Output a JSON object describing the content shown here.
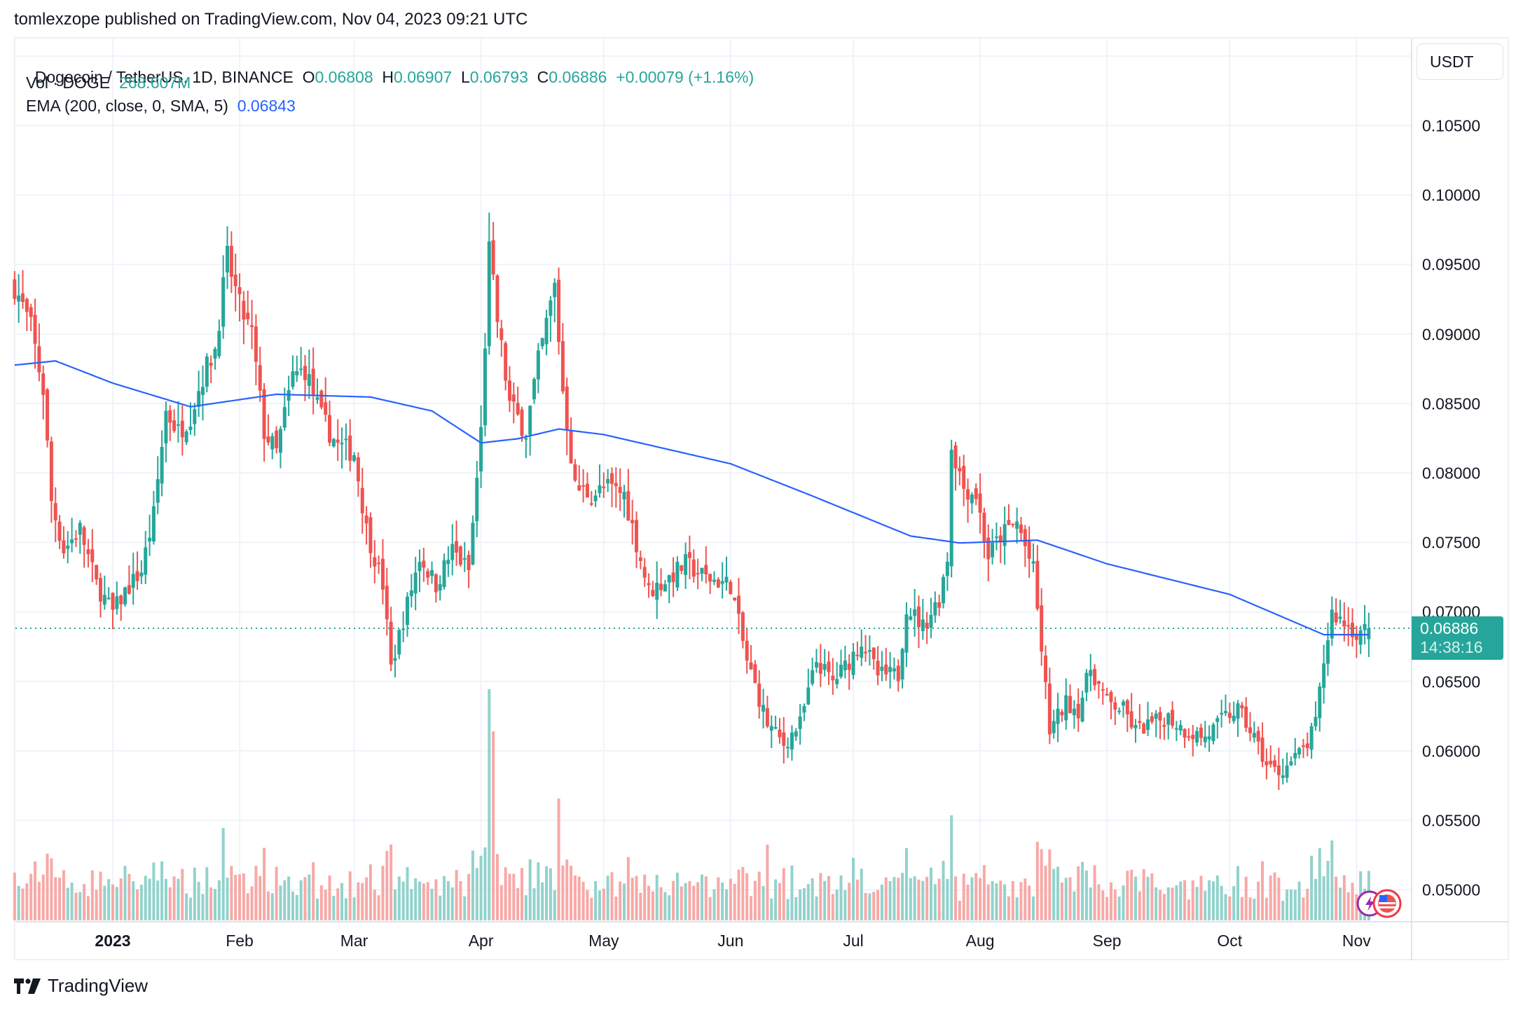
{
  "header": {
    "publisher_line": "tomlexzope published on TradingView.com, Nov 04, 2023 09:21 UTC"
  },
  "legend": {
    "symbol": "Dogecoin / TetherUS, 1D, BINANCE",
    "open_label": "O",
    "open": "0.06808",
    "high_label": "H",
    "high": "0.06907",
    "low_label": "L",
    "low": "0.06793",
    "close_label": "C",
    "close": "0.06886",
    "change": "+0.00079 (+1.16%)",
    "volume_label": "Vol · DOGE",
    "volume": "268.607M",
    "ema_label": "EMA (200, close, 0, SMA, 5)",
    "ema_value": "0.06843"
  },
  "price_axis": {
    "currency": "USDT",
    "ticks": [
      "0.10500",
      "0.10000",
      "0.09500",
      "0.09000",
      "0.08500",
      "0.08000",
      "0.07500",
      "0.07000",
      "0.06500",
      "0.06000",
      "0.05500",
      "0.05000"
    ],
    "last_price": "0.06886",
    "countdown": "14:38:16"
  },
  "time_axis": {
    "labels": [
      "2023",
      "Feb",
      "Mar",
      "Apr",
      "May",
      "Jun",
      "Jul",
      "Aug",
      "Sep",
      "Oct",
      "Nov"
    ]
  },
  "footer": {
    "brand": "TradingView"
  },
  "colors": {
    "up": "#26a69a",
    "down": "#ef5350",
    "vol_up": "#92d2cc",
    "vol_down": "#f7a9a7",
    "ema": "#2962ff",
    "grid": "#f0f3fa"
  },
  "chart_data": {
    "type": "candlestick",
    "title": "Dogecoin / TetherUS, 1D, BINANCE",
    "xlabel": "",
    "ylabel": "USDT",
    "ylim": [
      0.0475,
      0.1105
    ],
    "x_range": [
      "2022-12-08",
      "2023-11-04"
    ],
    "grid": true,
    "legend_position": "top-left",
    "series": [
      {
        "name": "DOGE/USDT close (approx. path)",
        "points": [
          [
            "2022-12-08",
            0.0935
          ],
          [
            "2022-12-12",
            0.0905
          ],
          [
            "2022-12-15",
            0.086
          ],
          [
            "2022-12-17",
            0.078
          ],
          [
            "2022-12-20",
            0.0745
          ],
          [
            "2022-12-24",
            0.076
          ],
          [
            "2022-12-28",
            0.072
          ],
          [
            "2023-01-01",
            0.07
          ],
          [
            "2023-01-04",
            0.0715
          ],
          [
            "2023-01-08",
            0.073
          ],
          [
            "2023-01-11",
            0.077
          ],
          [
            "2023-01-14",
            0.0845
          ],
          [
            "2023-01-17",
            0.083
          ],
          [
            "2023-01-20",
            0.0842
          ],
          [
            "2023-01-23",
            0.087
          ],
          [
            "2023-01-26",
            0.089
          ],
          [
            "2023-01-29",
            0.0955
          ],
          [
            "2023-02-01",
            0.092
          ],
          [
            "2023-02-04",
            0.09
          ],
          [
            "2023-02-07",
            0.083
          ],
          [
            "2023-02-10",
            0.0815
          ],
          [
            "2023-02-14",
            0.087
          ],
          [
            "2023-02-17",
            0.0875
          ],
          [
            "2023-02-21",
            0.084
          ],
          [
            "2023-02-25",
            0.082
          ],
          [
            "2023-03-01",
            0.0815
          ],
          [
            "2023-03-04",
            0.076
          ],
          [
            "2023-03-08",
            0.072
          ],
          [
            "2023-03-10",
            0.066
          ],
          [
            "2023-03-13",
            0.0695
          ],
          [
            "2023-03-17",
            0.074
          ],
          [
            "2023-03-21",
            0.072
          ],
          [
            "2023-03-25",
            0.0745
          ],
          [
            "2023-03-29",
            0.073
          ],
          [
            "2023-04-01",
            0.083
          ],
          [
            "2023-04-03",
            0.096
          ],
          [
            "2023-04-05",
            0.091
          ],
          [
            "2023-04-08",
            0.085
          ],
          [
            "2023-04-12",
            0.083
          ],
          [
            "2023-04-15",
            0.088
          ],
          [
            "2023-04-19",
            0.0935
          ],
          [
            "2023-04-21",
            0.086
          ],
          [
            "2023-04-24",
            0.079
          ],
          [
            "2023-04-28",
            0.0785
          ],
          [
            "2023-05-02",
            0.079
          ],
          [
            "2023-05-06",
            0.0785
          ],
          [
            "2023-05-09",
            0.075
          ],
          [
            "2023-05-12",
            0.0715
          ],
          [
            "2023-05-17",
            0.0725
          ],
          [
            "2023-05-21",
            0.0735
          ],
          [
            "2023-05-26",
            0.0725
          ],
          [
            "2023-06-01",
            0.072
          ],
          [
            "2023-06-05",
            0.0665
          ],
          [
            "2023-06-10",
            0.062
          ],
          [
            "2023-06-14",
            0.0605
          ],
          [
            "2023-06-18",
            0.062
          ],
          [
            "2023-06-22",
            0.0665
          ],
          [
            "2023-06-26",
            0.065
          ],
          [
            "2023-06-30",
            0.0665
          ],
          [
            "2023-07-03",
            0.068
          ],
          [
            "2023-07-07",
            0.0655
          ],
          [
            "2023-07-12",
            0.0655
          ],
          [
            "2023-07-14",
            0.0705
          ],
          [
            "2023-07-18",
            0.069
          ],
          [
            "2023-07-22",
            0.071
          ],
          [
            "2023-07-24",
            0.074
          ],
          [
            "2023-07-25",
            0.082
          ],
          [
            "2023-07-28",
            0.079
          ],
          [
            "2023-07-31",
            0.0785
          ],
          [
            "2023-08-03",
            0.074
          ],
          [
            "2023-08-06",
            0.0755
          ],
          [
            "2023-08-10",
            0.0765
          ],
          [
            "2023-08-14",
            0.073
          ],
          [
            "2023-08-17",
            0.0645
          ],
          [
            "2023-08-18",
            0.0615
          ],
          [
            "2023-08-22",
            0.0635
          ],
          [
            "2023-08-25",
            0.063
          ],
          [
            "2023-08-28",
            0.066
          ],
          [
            "2023-09-01",
            0.0635
          ],
          [
            "2023-09-05",
            0.063
          ],
          [
            "2023-09-08",
            0.0615
          ],
          [
            "2023-09-12",
            0.062
          ],
          [
            "2023-09-16",
            0.0625
          ],
          [
            "2023-09-20",
            0.0615
          ],
          [
            "2023-09-25",
            0.061
          ],
          [
            "2023-09-30",
            0.0625
          ],
          [
            "2023-10-03",
            0.063
          ],
          [
            "2023-10-07",
            0.061
          ],
          [
            "2023-10-10",
            0.059
          ],
          [
            "2023-10-13",
            0.0585
          ],
          [
            "2023-10-17",
            0.0595
          ],
          [
            "2023-10-20",
            0.0605
          ],
          [
            "2023-10-22",
            0.062
          ],
          [
            "2023-10-24",
            0.0665
          ],
          [
            "2023-10-26",
            0.07
          ],
          [
            "2023-10-28",
            0.0695
          ],
          [
            "2023-11-01",
            0.0685
          ],
          [
            "2023-11-04",
            0.06886
          ]
        ]
      },
      {
        "name": "EMA (200, close, 0, SMA, 5)",
        "points": [
          [
            "2022-12-08",
            0.0878
          ],
          [
            "2022-12-18",
            0.0881
          ],
          [
            "2023-01-01",
            0.0865
          ],
          [
            "2023-01-20",
            0.0848
          ],
          [
            "2023-02-10",
            0.0857
          ],
          [
            "2023-03-05",
            0.0855
          ],
          [
            "2023-03-20",
            0.0845
          ],
          [
            "2023-04-01",
            0.0822
          ],
          [
            "2023-04-10",
            0.0825
          ],
          [
            "2023-04-20",
            0.0832
          ],
          [
            "2023-05-01",
            0.0828
          ],
          [
            "2023-06-01",
            0.0807
          ],
          [
            "2023-06-20",
            0.0785
          ],
          [
            "2023-07-15",
            0.0755
          ],
          [
            "2023-07-27",
            0.075
          ],
          [
            "2023-08-15",
            0.0752
          ],
          [
            "2023-09-01",
            0.0735
          ],
          [
            "2023-10-01",
            0.0713
          ],
          [
            "2023-10-24",
            0.0684
          ],
          [
            "2023-11-04",
            0.0684
          ]
        ]
      },
      {
        "name": "Volume spikes (relative, 0-1)",
        "points": [
          [
            "2023-01-28",
            0.22
          ],
          [
            "2023-04-03",
            0.55
          ],
          [
            "2023-04-04",
            0.45
          ],
          [
            "2023-04-20",
            0.29
          ],
          [
            "2023-06-10",
            0.18
          ],
          [
            "2023-07-25",
            0.25
          ],
          [
            "2023-08-17",
            0.13
          ],
          [
            "2023-10-26",
            0.19
          ]
        ]
      }
    ]
  }
}
